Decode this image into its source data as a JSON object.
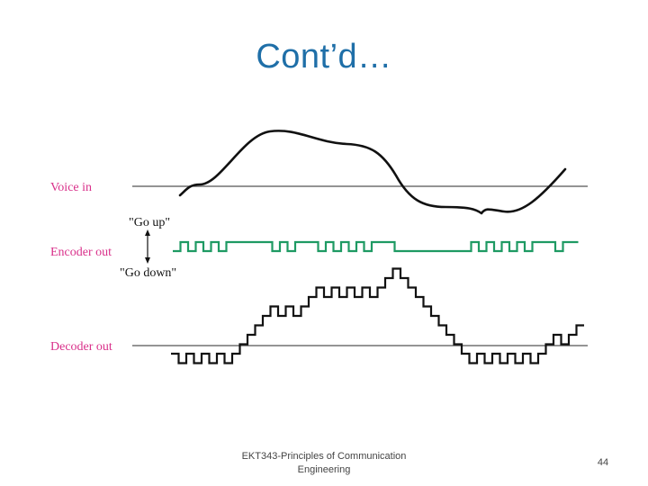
{
  "slide": {
    "title": "Cont’d…",
    "footer": "EKT343-Principles of Communication Engineering",
    "page_number": "44"
  },
  "diagram": {
    "labels": {
      "voice_in": "Voice in",
      "go_up": "\"Go up\"",
      "encoder_out": "Encoder out",
      "go_down": "\"Go down\"",
      "decoder_out": "Decoder out"
    },
    "colors": {
      "label": "#D9308A",
      "encoder_signal": "#1E9A63",
      "signal": "#111111",
      "axis": "#555555",
      "title": "#1F6FA8"
    },
    "encoder_bits": [
      0,
      1,
      0,
      1,
      0,
      1,
      0,
      1,
      1,
      1,
      1,
      1,
      1,
      0,
      1,
      0,
      1,
      1,
      1,
      0,
      1,
      0,
      1,
      0,
      1,
      0,
      1,
      1,
      1,
      0,
      0,
      0,
      0,
      0,
      0,
      0,
      0,
      0,
      0,
      1,
      0,
      1,
      0,
      1,
      0,
      1,
      0,
      1,
      1,
      1,
      0,
      1,
      1
    ]
  }
}
